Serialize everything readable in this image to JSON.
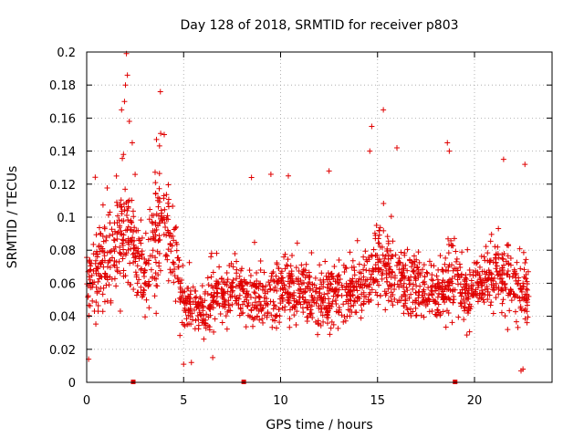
{
  "chart_data": {
    "type": "scatter",
    "title": "Day 128 of 2018, SRMTID for receiver p803",
    "xlabel": "GPS time / hours",
    "ylabel": "SRMTID / TECUs",
    "xlim": [
      0,
      24
    ],
    "ylim": [
      0,
      0.2
    ],
    "xticks": [
      0,
      5,
      10,
      15,
      20
    ],
    "xtick_labels": [
      "0",
      "5",
      "10",
      "15",
      "20"
    ],
    "yticks": [
      0,
      0.02,
      0.04,
      0.06,
      0.08,
      0.1,
      0.12,
      0.14,
      0.16,
      0.18,
      0.2
    ],
    "ytick_labels": [
      "0",
      "0.02",
      "0.04",
      "0.06",
      "0.08",
      "0.1",
      "0.12",
      "0.14",
      "0.16",
      "0.18",
      "0.2"
    ],
    "grid": true,
    "marker": "+",
    "color": "#e00000",
    "baseline_markers": [
      2.4,
      8.1,
      19.0
    ],
    "series": [
      {
        "name": "SRMTID",
        "profile": [
          [
            0.0,
            0.06,
            0.018
          ],
          [
            0.5,
            0.07,
            0.02
          ],
          [
            1.0,
            0.075,
            0.022
          ],
          [
            1.5,
            0.082,
            0.025
          ],
          [
            2.0,
            0.095,
            0.028
          ],
          [
            2.5,
            0.08,
            0.02
          ],
          [
            3.0,
            0.06,
            0.018
          ],
          [
            3.5,
            0.085,
            0.025
          ],
          [
            4.0,
            0.098,
            0.025
          ],
          [
            4.5,
            0.075,
            0.02
          ],
          [
            5.0,
            0.048,
            0.012
          ],
          [
            6.0,
            0.042,
            0.012
          ],
          [
            7.0,
            0.055,
            0.015
          ],
          [
            8.0,
            0.052,
            0.014
          ],
          [
            9.0,
            0.05,
            0.014
          ],
          [
            10.0,
            0.052,
            0.014
          ],
          [
            11.0,
            0.055,
            0.015
          ],
          [
            12.0,
            0.048,
            0.013
          ],
          [
            13.0,
            0.055,
            0.015
          ],
          [
            14.0,
            0.052,
            0.014
          ],
          [
            14.8,
            0.068,
            0.02
          ],
          [
            15.5,
            0.07,
            0.02
          ],
          [
            16.5,
            0.058,
            0.016
          ],
          [
            17.5,
            0.055,
            0.015
          ],
          [
            18.5,
            0.055,
            0.016
          ],
          [
            19.0,
            0.068,
            0.02
          ],
          [
            19.5,
            0.052,
            0.014
          ],
          [
            20.5,
            0.062,
            0.015
          ],
          [
            21.5,
            0.065,
            0.017
          ],
          [
            22.5,
            0.055,
            0.016
          ],
          [
            22.8,
            0.052,
            0.015
          ]
        ],
        "n_points": 1900,
        "outliers": [
          [
            2.05,
            0.199
          ],
          [
            2.1,
            0.186
          ],
          [
            2.0,
            0.18
          ],
          [
            1.95,
            0.17
          ],
          [
            1.8,
            0.165
          ],
          [
            3.8,
            0.176
          ],
          [
            3.6,
            0.147
          ],
          [
            4.0,
            0.15
          ],
          [
            2.2,
            0.158
          ],
          [
            2.35,
            0.145
          ],
          [
            15.3,
            0.165
          ],
          [
            14.7,
            0.155
          ],
          [
            14.6,
            0.14
          ],
          [
            16.0,
            0.142
          ],
          [
            18.6,
            0.145
          ],
          [
            18.7,
            0.14
          ],
          [
            22.6,
            0.132
          ],
          [
            21.5,
            0.135
          ],
          [
            9.5,
            0.126
          ],
          [
            10.4,
            0.125
          ],
          [
            8.5,
            0.124
          ],
          [
            12.5,
            0.128
          ],
          [
            22.5,
            0.008
          ],
          [
            22.4,
            0.007
          ],
          [
            5.0,
            0.011
          ],
          [
            5.4,
            0.012
          ],
          [
            6.5,
            0.015
          ],
          [
            0.1,
            0.014
          ]
        ]
      }
    ]
  }
}
